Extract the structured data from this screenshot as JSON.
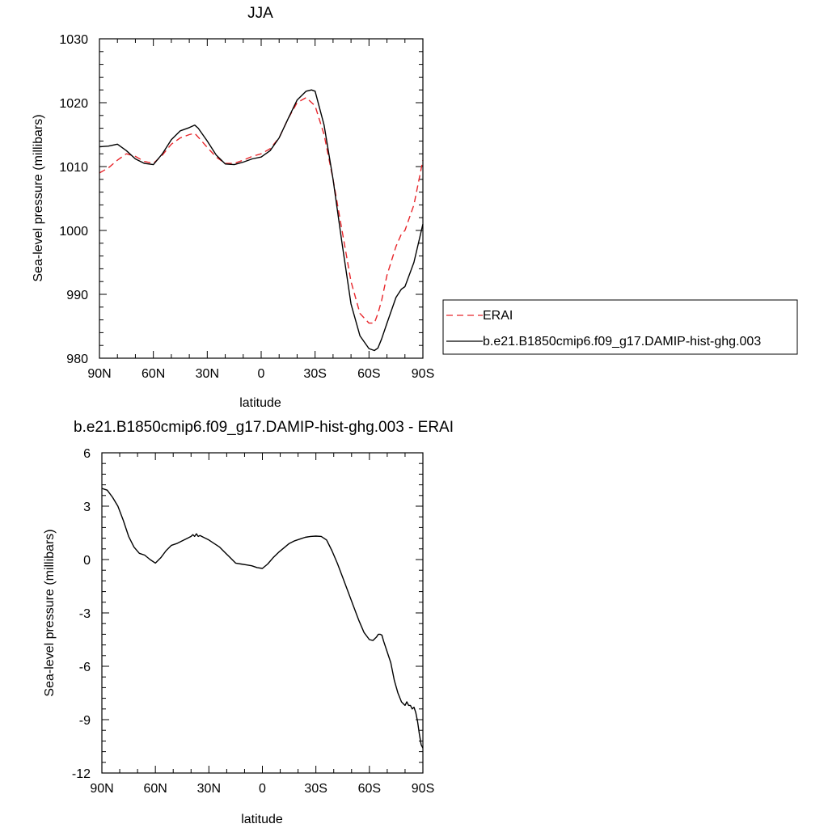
{
  "chart_data": [
    {
      "type": "line",
      "title": "JJA",
      "xlabel": "latitude",
      "ylabel": "Sea-level pressure (millibars)",
      "xlim": [
        90,
        -90
      ],
      "ylim": [
        980,
        1030
      ],
      "x_ticks": [
        90,
        60,
        30,
        0,
        -30,
        -60,
        -90
      ],
      "x_tick_labels": [
        "90N",
        "60N",
        "30N",
        "0",
        "30S",
        "60S",
        "90S"
      ],
      "y_ticks": [
        980,
        990,
        1000,
        1010,
        1020,
        1030
      ],
      "y_tick_labels": [
        "980",
        "990",
        "1000",
        "1010",
        "1020",
        "1030"
      ],
      "grid": false,
      "legend_placement": "right",
      "series": [
        {
          "name": "ERAI",
          "color": "#e8262b",
          "dash": "dashed",
          "x": [
            90,
            85,
            80,
            75,
            70,
            65,
            60,
            55,
            50,
            45,
            40,
            37,
            35,
            30,
            25,
            20,
            15,
            10,
            5,
            0,
            -5,
            -10,
            -15,
            -20,
            -25,
            -30,
            -35,
            -40,
            -45,
            -50,
            -55,
            -60,
            -63,
            -65,
            -67,
            -70,
            -75,
            -78,
            -80,
            -85,
            -90
          ],
          "y": [
            1009,
            1009.8,
            1011,
            1012,
            1011.6,
            1010.8,
            1010.5,
            1011.8,
            1013.5,
            1014.5,
            1015,
            1015.2,
            1014.6,
            1013,
            1011.5,
            1010.5,
            1010.5,
            1011,
            1011.6,
            1012,
            1012.8,
            1014.5,
            1017.5,
            1020,
            1020.8,
            1019.5,
            1015,
            1008,
            1000,
            992,
            987,
            985.5,
            985.5,
            987,
            989,
            993,
            997.5,
            999.4,
            1000,
            1004,
            1011
          ]
        },
        {
          "name": "b.e21.B1850cmip6.f09_g17.DAMIP-hist-ghg.003",
          "color": "#000000",
          "dash": "solid",
          "x": [
            90,
            85,
            80,
            75,
            70,
            65,
            60,
            55,
            50,
            45,
            40,
            37,
            35,
            30,
            25,
            20,
            15,
            10,
            5,
            0,
            -5,
            -10,
            -15,
            -20,
            -25,
            -28,
            -30,
            -35,
            -40,
            -45,
            -50,
            -55,
            -60,
            -63,
            -65,
            -67,
            -70,
            -75,
            -78,
            -80,
            -85,
            -90
          ],
          "y": [
            1013.1,
            1013.2,
            1013.5,
            1012.5,
            1011.2,
            1010.5,
            1010.3,
            1012,
            1014.2,
            1015.6,
            1016.1,
            1016.5,
            1016,
            1014,
            1011.8,
            1010.4,
            1010.3,
            1010.7,
            1011.2,
            1011.5,
            1012.5,
            1014.5,
            1017.5,
            1020.4,
            1021.8,
            1022,
            1021.8,
            1016.5,
            1008,
            998,
            988.5,
            983.5,
            981.5,
            981.2,
            981.6,
            983,
            985.5,
            989.5,
            990.8,
            991.2,
            995,
            1001
          ]
        }
      ]
    },
    {
      "type": "line",
      "title": "b.e21.B1850cmip6.f09_g17.DAMIP-hist-ghg.003 - ERAI",
      "xlabel": "latitude",
      "ylabel": "Sea-level pressure (millibars)",
      "xlim": [
        90,
        -90
      ],
      "ylim": [
        -12,
        6
      ],
      "x_ticks": [
        90,
        60,
        30,
        0,
        -30,
        -60,
        -90
      ],
      "x_tick_labels": [
        "90N",
        "60N",
        "30N",
        "0",
        "30S",
        "60S",
        "90S"
      ],
      "y_ticks": [
        -12,
        -9,
        -6,
        -3,
        0,
        3,
        6
      ],
      "y_tick_labels": [
        "-12",
        "-9",
        "-6",
        "-3",
        "0",
        "3",
        "6"
      ],
      "grid": false,
      "series": [
        {
          "color": "#000000",
          "dash": "solid",
          "x": [
            90,
            87,
            84,
            81,
            78,
            75,
            72,
            69,
            66,
            63,
            60,
            57,
            54,
            51,
            48,
            45,
            42,
            40,
            39,
            38,
            37,
            36,
            35,
            33,
            30,
            27,
            24,
            21,
            18,
            15,
            12,
            9,
            6,
            3,
            0,
            -3,
            -6,
            -9,
            -12,
            -15,
            -18,
            -21,
            -24,
            -27,
            -30,
            -33,
            -36,
            -39,
            -42,
            -45,
            -48,
            -51,
            -54,
            -57,
            -60,
            -62,
            -64,
            -65,
            -66,
            -67,
            -68,
            -70,
            -72,
            -74,
            -76,
            -78,
            -79,
            -80,
            -81,
            -82,
            -83,
            -84,
            -85,
            -86,
            -87,
            -88,
            -89,
            -90
          ],
          "y": [
            4.0,
            3.9,
            3.5,
            3.0,
            2.2,
            1.3,
            0.7,
            0.35,
            0.25,
            0.0,
            -0.2,
            0.1,
            0.5,
            0.8,
            0.9,
            1.05,
            1.2,
            1.3,
            1.4,
            1.3,
            1.45,
            1.3,
            1.35,
            1.25,
            1.1,
            0.9,
            0.7,
            0.4,
            0.1,
            -0.2,
            -0.25,
            -0.3,
            -0.35,
            -0.45,
            -0.5,
            -0.25,
            0.1,
            0.4,
            0.65,
            0.9,
            1.05,
            1.15,
            1.25,
            1.3,
            1.32,
            1.3,
            1.1,
            0.5,
            -0.2,
            -1.0,
            -1.8,
            -2.6,
            -3.4,
            -4.1,
            -4.5,
            -4.55,
            -4.35,
            -4.2,
            -4.2,
            -4.25,
            -4.6,
            -5.2,
            -5.8,
            -6.8,
            -7.5,
            -8.0,
            -8.1,
            -8.2,
            -8.0,
            -8.2,
            -8.2,
            -8.4,
            -8.3,
            -8.6,
            -9.1,
            -9.8,
            -10.4,
            -10.6
          ]
        }
      ]
    }
  ]
}
